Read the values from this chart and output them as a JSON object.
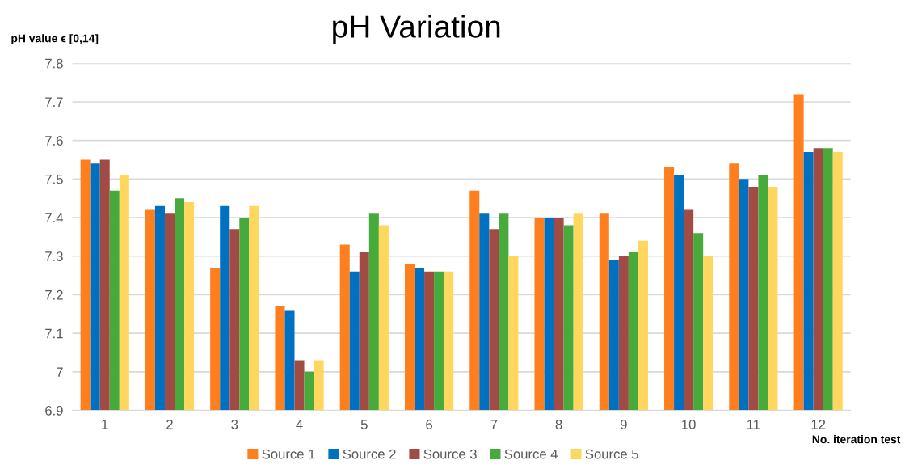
{
  "chart_data": {
    "type": "bar",
    "title": "pH Variation",
    "ylabel": "pH value ϵ [0,14]",
    "xlabel": "No. iteration test",
    "categories": [
      "1",
      "2",
      "3",
      "4",
      "5",
      "6",
      "7",
      "8",
      "9",
      "10",
      "11",
      "12"
    ],
    "series": [
      {
        "name": "Source 1",
        "color": "#ff7f1e",
        "values": [
          7.55,
          7.42,
          7.27,
          7.17,
          7.33,
          7.28,
          7.47,
          7.4,
          7.41,
          7.53,
          7.54,
          7.72
        ]
      },
      {
        "name": "Source 2",
        "color": "#0070c0",
        "values": [
          7.54,
          7.43,
          7.43,
          7.16,
          7.26,
          7.27,
          7.41,
          7.4,
          7.29,
          7.51,
          7.5,
          7.57
        ]
      },
      {
        "name": "Source 3",
        "color": "#a04c44",
        "values": [
          7.55,
          7.41,
          7.37,
          7.03,
          7.31,
          7.26,
          7.37,
          7.4,
          7.3,
          7.42,
          7.48,
          7.58
        ]
      },
      {
        "name": "Source 4",
        "color": "#46ab3b",
        "values": [
          7.47,
          7.45,
          7.4,
          7.0,
          7.41,
          7.26,
          7.41,
          7.38,
          7.31,
          7.36,
          7.51,
          7.58
        ]
      },
      {
        "name": "Source 5",
        "color": "#ffd75e",
        "values": [
          7.51,
          7.44,
          7.43,
          7.03,
          7.38,
          7.26,
          7.3,
          7.41,
          7.34,
          7.3,
          7.48,
          7.57
        ]
      }
    ],
    "ylim": [
      6.9,
      7.8
    ],
    "yticks": [
      6.9,
      7,
      7.1,
      7.2,
      7.3,
      7.4,
      7.5,
      7.6,
      7.7,
      7.8
    ],
    "grid": "y",
    "legend": "bottom"
  }
}
